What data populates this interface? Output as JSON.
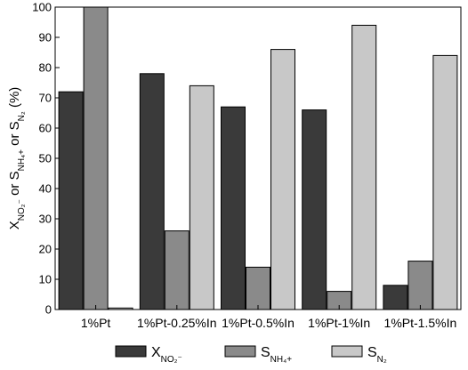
{
  "chart_data": {
    "type": "bar",
    "categories": [
      "1%Pt",
      "1%Pt-0.25%In",
      "1%Pt-0.5%In",
      "1%Pt-1%In",
      "1%Pt-1.5%In"
    ],
    "series": [
      {
        "name": "X",
        "sub": "NO₂⁻",
        "color": "#3a3a3a",
        "values": [
          72,
          78,
          67,
          66,
          8
        ]
      },
      {
        "name": "S",
        "sub": "NH₄+",
        "color": "#8a8a8a",
        "values": [
          100,
          26,
          14,
          6,
          16
        ]
      },
      {
        "name": "S",
        "sub": "N₂",
        "color": "#c8c8c8",
        "values": [
          0.5,
          74,
          86,
          94,
          84
        ]
      }
    ],
    "ylabel": {
      "parts": [
        {
          "main": "X",
          "sub": "NO₂⁻"
        },
        {
          "text": " or "
        },
        {
          "main": "S",
          "sub": "NH₄+"
        },
        {
          "text": " or "
        },
        {
          "main": "S",
          "sub": "N₂"
        },
        {
          "text": " (%)"
        }
      ]
    },
    "ylim": [
      0,
      100
    ],
    "yticks": [
      0,
      10,
      20,
      30,
      40,
      50,
      60,
      70,
      80,
      90,
      100
    ],
    "grid": false,
    "legend_position": "bottom"
  }
}
